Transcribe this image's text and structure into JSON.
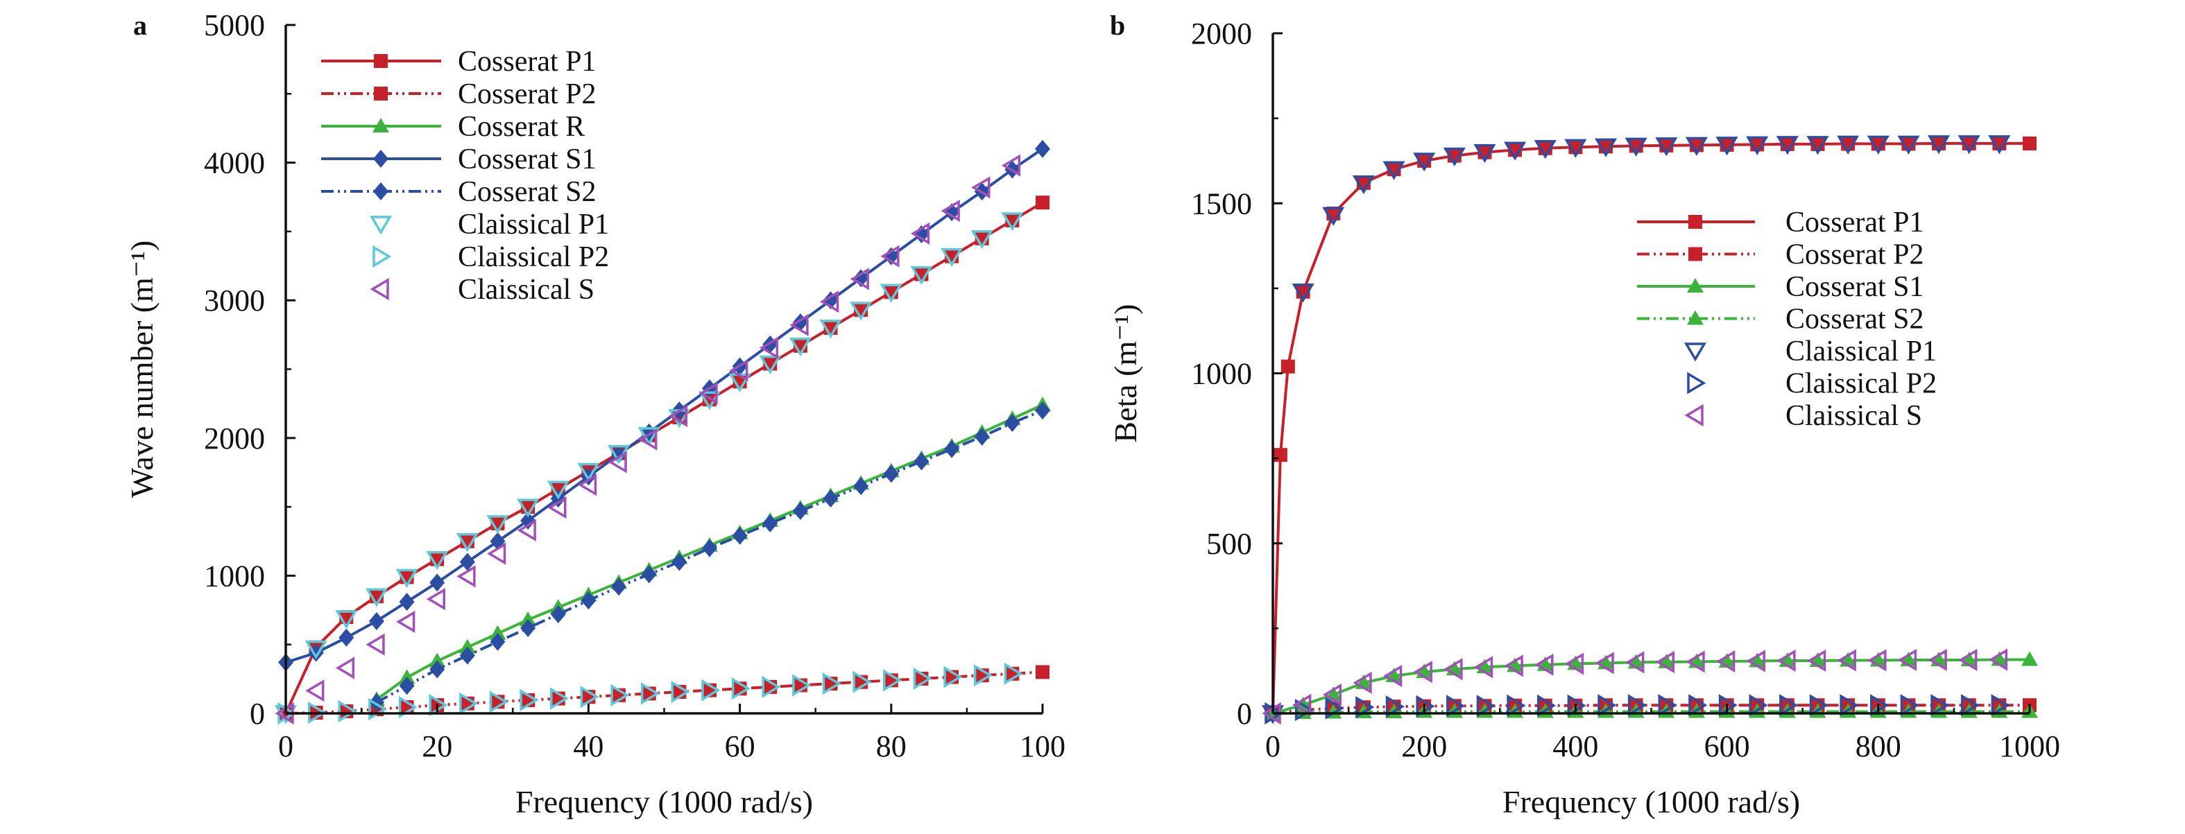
{
  "chart_data": [
    {
      "type": "line",
      "panel_label": "a",
      "xlabel": "Frequency (1000 rad/s)",
      "ylabel": "Wave number (m⁻¹)",
      "xlim": [
        0,
        100
      ],
      "ylim": [
        0,
        5000
      ],
      "x_ticks": [
        "0",
        "20",
        "40",
        "60",
        "80",
        "100"
      ],
      "y_ticks": [
        "0",
        "1000",
        "2000",
        "3000",
        "4000",
        "5000"
      ],
      "grid": false,
      "legend_position": "top-left",
      "series": [
        {
          "name": "Cosserat P1",
          "style": "solid",
          "marker": "square",
          "color": "#c8202a",
          "x": [
            0,
            4,
            8,
            12,
            16,
            20,
            24,
            28,
            32,
            36,
            40,
            44,
            48,
            52,
            56,
            60,
            64,
            68,
            72,
            76,
            80,
            84,
            88,
            92,
            96,
            100
          ],
          "y": [
            0,
            480,
            700,
            850,
            990,
            1120,
            1250,
            1380,
            1500,
            1630,
            1760,
            1890,
            2020,
            2150,
            2280,
            2410,
            2540,
            2670,
            2800,
            2930,
            3060,
            3190,
            3320,
            3450,
            3580,
            3710
          ]
        },
        {
          "name": "Cosserat P2",
          "style": "dashdotdot",
          "marker": "square",
          "color": "#c8202a",
          "x": [
            0,
            4,
            8,
            12,
            16,
            20,
            24,
            28,
            32,
            36,
            40,
            44,
            48,
            52,
            56,
            60,
            64,
            68,
            72,
            76,
            80,
            84,
            88,
            92,
            96,
            100
          ],
          "y": [
            0,
            5,
            15,
            30,
            45,
            60,
            72,
            84,
            96,
            108,
            120,
            132,
            144,
            156,
            168,
            180,
            192,
            204,
            216,
            228,
            240,
            252,
            264,
            276,
            288,
            300
          ]
        },
        {
          "name": "Cosserat R",
          "style": "solid",
          "marker": "triangle",
          "color": "#3cb43c",
          "x": [
            12,
            16,
            20,
            24,
            28,
            32,
            36,
            40,
            44,
            48,
            52,
            56,
            60,
            64,
            68,
            72,
            76,
            80,
            84,
            88,
            92,
            96,
            100
          ],
          "y": [
            100,
            260,
            380,
            480,
            580,
            680,
            770,
            860,
            950,
            1040,
            1130,
            1220,
            1310,
            1400,
            1490,
            1580,
            1670,
            1760,
            1850,
            1940,
            2040,
            2140,
            2240
          ]
        },
        {
          "name": "Cosserat S1",
          "style": "solid",
          "marker": "diamond",
          "color": "#2b4ea2",
          "x": [
            0,
            4,
            8,
            12,
            16,
            20,
            24,
            28,
            32,
            36,
            40,
            44,
            48,
            52,
            56,
            60,
            64,
            68,
            72,
            76,
            80,
            84,
            88,
            92,
            96,
            100
          ],
          "y": [
            370,
            440,
            550,
            670,
            810,
            950,
            1100,
            1250,
            1400,
            1560,
            1720,
            1880,
            2040,
            2200,
            2360,
            2520,
            2680,
            2840,
            3000,
            3160,
            3320,
            3480,
            3640,
            3790,
            3950,
            4100
          ]
        },
        {
          "name": "Cosserat S2",
          "style": "dashdotdot",
          "marker": "diamond",
          "color": "#2b4ea2",
          "x": [
            12,
            16,
            20,
            24,
            28,
            32,
            36,
            40,
            44,
            48,
            52,
            56,
            60,
            64,
            68,
            72,
            76,
            80,
            84,
            88,
            92,
            96,
            100
          ],
          "y": [
            80,
            200,
            320,
            420,
            520,
            620,
            720,
            820,
            920,
            1010,
            1100,
            1200,
            1290,
            1380,
            1470,
            1560,
            1650,
            1740,
            1830,
            1920,
            2010,
            2110,
            2200
          ]
        },
        {
          "name": "Claissical P1",
          "style": "none",
          "marker": "triangle-down-open",
          "color": "#5cc8d8",
          "x": [
            0,
            4,
            8,
            12,
            16,
            20,
            24,
            28,
            32,
            36,
            40,
            44,
            48,
            52,
            56,
            60,
            64,
            68,
            72,
            76,
            80,
            84,
            88,
            92,
            96
          ],
          "y": [
            0,
            470,
            690,
            850,
            990,
            1120,
            1250,
            1380,
            1500,
            1630,
            1760,
            1890,
            2020,
            2150,
            2280,
            2410,
            2540,
            2670,
            2800,
            2930,
            3060,
            3190,
            3320,
            3450,
            3580
          ]
        },
        {
          "name": "Claissical P2",
          "style": "none",
          "marker": "triangle-right-open",
          "color": "#5cc8d8",
          "x": [
            0,
            4,
            8,
            12,
            16,
            20,
            24,
            28,
            32,
            36,
            40,
            44,
            48,
            52,
            56,
            60,
            64,
            68,
            72,
            76,
            80,
            84,
            88,
            92,
            96
          ],
          "y": [
            0,
            5,
            15,
            30,
            45,
            60,
            72,
            84,
            96,
            108,
            120,
            132,
            144,
            156,
            168,
            180,
            192,
            204,
            216,
            228,
            240,
            252,
            264,
            276,
            288
          ]
        },
        {
          "name": "Claissical S",
          "style": "none",
          "marker": "triangle-left-open",
          "color": "#a050b8",
          "x": [
            0,
            4,
            8,
            12,
            16,
            20,
            24,
            28,
            32,
            36,
            40,
            44,
            48,
            52,
            56,
            60,
            64,
            68,
            72,
            76,
            80,
            84,
            88,
            92,
            96
          ],
          "y": [
            0,
            165,
            330,
            500,
            665,
            830,
            995,
            1160,
            1330,
            1495,
            1660,
            1825,
            1990,
            2160,
            2325,
            2490,
            2655,
            2820,
            2990,
            3155,
            3320,
            3485,
            3650,
            3820,
            3980
          ]
        }
      ]
    },
    {
      "type": "line",
      "panel_label": "b",
      "xlabel": "Frequency (1000 rad/s)",
      "ylabel": "Beta (m⁻¹)",
      "xlim": [
        0,
        1000
      ],
      "ylim": [
        0,
        2000
      ],
      "x_ticks": [
        "0",
        "200",
        "400",
        "600",
        "800",
        "1000"
      ],
      "y_ticks": [
        "0",
        "500",
        "1000",
        "1500",
        "2000"
      ],
      "grid": false,
      "legend_position": "right",
      "series": [
        {
          "name": "Cosserat P1",
          "style": "solid",
          "marker": "square",
          "color": "#c8202a",
          "x": [
            0,
            10,
            20,
            40,
            80,
            120,
            160,
            200,
            240,
            280,
            320,
            360,
            400,
            440,
            480,
            520,
            560,
            600,
            640,
            680,
            720,
            760,
            800,
            840,
            880,
            920,
            960,
            1000
          ],
          "y": [
            0,
            760,
            1020,
            1240,
            1470,
            1560,
            1600,
            1625,
            1640,
            1650,
            1657,
            1662,
            1665,
            1667,
            1669,
            1670,
            1671,
            1672,
            1673,
            1674,
            1674,
            1675,
            1675,
            1675,
            1676,
            1676,
            1676,
            1676
          ]
        },
        {
          "name": "Cosserat P2",
          "style": "dashdotdot",
          "marker": "square",
          "color": "#c8202a",
          "x": [
            0,
            40,
            80,
            120,
            160,
            200,
            240,
            280,
            320,
            360,
            400,
            440,
            480,
            520,
            560,
            600,
            640,
            680,
            720,
            760,
            800,
            840,
            880,
            920,
            960,
            1000
          ],
          "y": [
            0,
            10,
            15,
            18,
            20,
            21,
            22,
            22,
            23,
            23,
            23,
            24,
            24,
            24,
            24,
            24,
            24,
            24,
            24,
            24,
            24,
            24,
            24,
            24,
            24,
            24
          ]
        },
        {
          "name": "Cosserat S1",
          "style": "solid",
          "marker": "triangle",
          "color": "#3cb43c",
          "x": [
            0,
            40,
            80,
            120,
            160,
            200,
            240,
            280,
            320,
            360,
            400,
            440,
            480,
            520,
            560,
            600,
            640,
            680,
            720,
            760,
            800,
            840,
            880,
            920,
            960,
            1000
          ],
          "y": [
            0,
            25,
            55,
            90,
            110,
            122,
            130,
            136,
            140,
            143,
            146,
            148,
            150,
            151,
            152,
            153,
            154,
            155,
            155,
            156,
            156,
            157,
            157,
            157,
            158,
            158
          ]
        },
        {
          "name": "Cosserat S2",
          "style": "dashdotdot",
          "marker": "triangle",
          "color": "#3cb43c",
          "x": [
            0,
            40,
            80,
            120,
            160,
            200,
            240,
            280,
            320,
            360,
            400,
            440,
            480,
            520,
            560,
            600,
            640,
            680,
            720,
            760,
            800,
            840,
            880,
            920,
            960,
            1000
          ],
          "y": [
            0,
            2,
            3,
            4,
            4,
            5,
            5,
            5,
            5,
            5,
            5,
            5,
            5,
            5,
            5,
            5,
            5,
            5,
            5,
            5,
            5,
            5,
            5,
            5,
            5,
            5
          ]
        },
        {
          "name": "Claissical P1",
          "style": "none",
          "marker": "triangle-down-open",
          "color": "#2b4ea2",
          "x": [
            0,
            40,
            80,
            120,
            160,
            200,
            240,
            280,
            320,
            360,
            400,
            440,
            480,
            520,
            560,
            600,
            640,
            680,
            720,
            760,
            800,
            840,
            880,
            920,
            960
          ],
          "y": [
            0,
            1240,
            1465,
            1558,
            1600,
            1625,
            1640,
            1650,
            1657,
            1662,
            1665,
            1667,
            1669,
            1670,
            1671,
            1672,
            1673,
            1674,
            1674,
            1675,
            1675,
            1675,
            1676,
            1676,
            1676
          ]
        },
        {
          "name": "Claissical P2",
          "style": "none",
          "marker": "triangle-right-open",
          "color": "#2b4ea2",
          "x": [
            0,
            40,
            80,
            120,
            160,
            200,
            240,
            280,
            320,
            360,
            400,
            440,
            480,
            520,
            560,
            600,
            640,
            680,
            720,
            760,
            800,
            840,
            880,
            920,
            960
          ],
          "y": [
            0,
            10,
            15,
            18,
            20,
            21,
            22,
            22,
            23,
            23,
            23,
            24,
            24,
            24,
            24,
            24,
            24,
            24,
            24,
            24,
            24,
            24,
            24,
            24,
            24
          ]
        },
        {
          "name": "Claissical S",
          "style": "none",
          "marker": "triangle-left-open",
          "color": "#a050b8",
          "x": [
            0,
            40,
            80,
            120,
            160,
            200,
            240,
            280,
            320,
            360,
            400,
            440,
            480,
            520,
            560,
            600,
            640,
            680,
            720,
            760,
            800,
            840,
            880,
            920,
            960
          ],
          "y": [
            0,
            25,
            55,
            90,
            110,
            122,
            130,
            136,
            140,
            143,
            146,
            148,
            150,
            151,
            152,
            153,
            154,
            155,
            155,
            156,
            156,
            157,
            157,
            157,
            158
          ]
        }
      ]
    }
  ]
}
